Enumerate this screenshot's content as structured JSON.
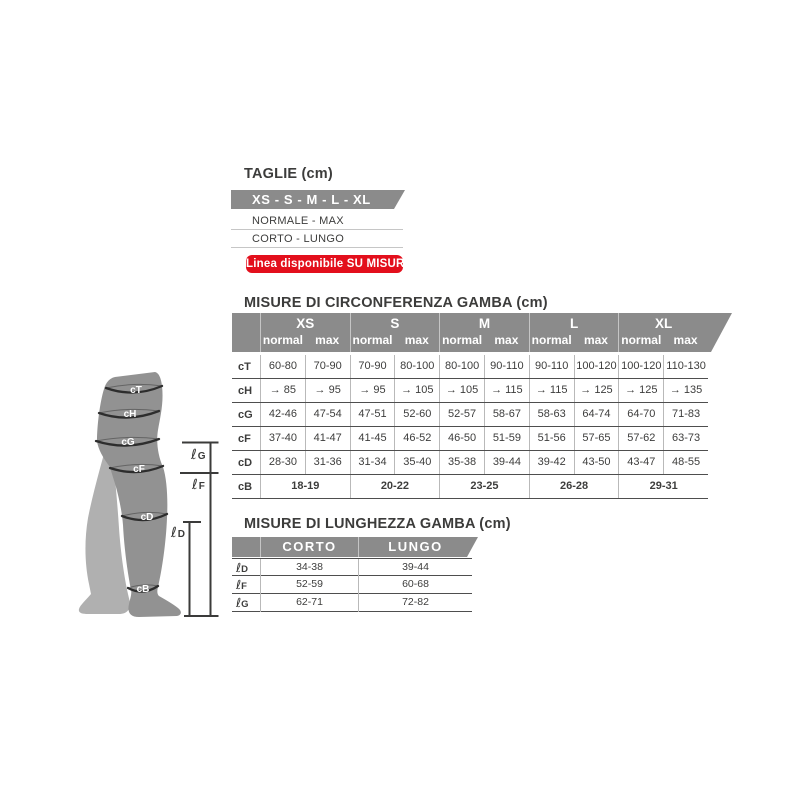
{
  "sizes_section": {
    "title": "TAGLIE (cm)",
    "banner": "XS - S - M - L - XL",
    "options": [
      "NORMALE - MAX",
      "CORTO - LUNGO"
    ],
    "badge": "Linea disponibile SU MISURA"
  },
  "circumference_table": {
    "title": "MISURE DI CIRCONFERENZA GAMBA (cm)",
    "sizes": [
      "XS",
      "S",
      "M",
      "L",
      "XL"
    ],
    "subheaders": [
      "normal",
      "max"
    ],
    "rows": [
      {
        "label": "cT",
        "cells": [
          "60-80",
          "70-90",
          "70-90",
          "80-100",
          "80-100",
          "90-110",
          "90-110",
          "100-120",
          "100-120",
          "110-130"
        ]
      },
      {
        "label": "cH",
        "cells": [
          "→ 85",
          "→ 95",
          "→ 95",
          "→ 105",
          "→ 105",
          "→ 115",
          "→ 115",
          "→ 125",
          "→ 125",
          "→ 135"
        ]
      },
      {
        "label": "cG",
        "cells": [
          "42-46",
          "47-54",
          "47-51",
          "52-60",
          "52-57",
          "58-67",
          "58-63",
          "64-74",
          "64-70",
          "71-83"
        ]
      },
      {
        "label": "cF",
        "cells": [
          "37-40",
          "41-47",
          "41-45",
          "46-52",
          "46-50",
          "51-59",
          "51-56",
          "57-65",
          "57-62",
          "63-73"
        ]
      },
      {
        "label": "cD",
        "cells": [
          "28-30",
          "31-36",
          "31-34",
          "35-40",
          "35-38",
          "39-44",
          "39-42",
          "43-50",
          "43-47",
          "48-55"
        ]
      },
      {
        "label": "cB",
        "span2": true,
        "cells": [
          "18-19",
          "20-22",
          "23-25",
          "26-28",
          "29-31"
        ]
      }
    ]
  },
  "length_table": {
    "title": "MISURE DI LUNGHEZZA GAMBA (cm)",
    "columns": [
      "CORTO",
      "LUNGO"
    ],
    "rows": [
      {
        "label_script": "ℓ",
        "label_letter": "D",
        "cells": [
          "34-38",
          "39-44"
        ]
      },
      {
        "label_script": "ℓ",
        "label_letter": "F",
        "cells": [
          "52-59",
          "60-68"
        ]
      },
      {
        "label_script": "ℓ",
        "label_letter": "G",
        "cells": [
          "62-71",
          "72-82"
        ]
      }
    ]
  },
  "leg_diagram": {
    "band_labels": [
      "cT",
      "cH",
      "cG",
      "cF",
      "cD",
      "cB"
    ],
    "length_marks": [
      {
        "script": "ℓ",
        "letter": "G"
      },
      {
        "script": "ℓ",
        "letter": "F"
      },
      {
        "script": "ℓ",
        "letter": "D"
      }
    ]
  },
  "colors": {
    "header_gray": "#8b8b8b",
    "badge_red": "#e30f1c",
    "text_dark": "#3d3d3c",
    "leg_front_gray": "#929292",
    "leg_back_gray": "#b0b0b0"
  }
}
